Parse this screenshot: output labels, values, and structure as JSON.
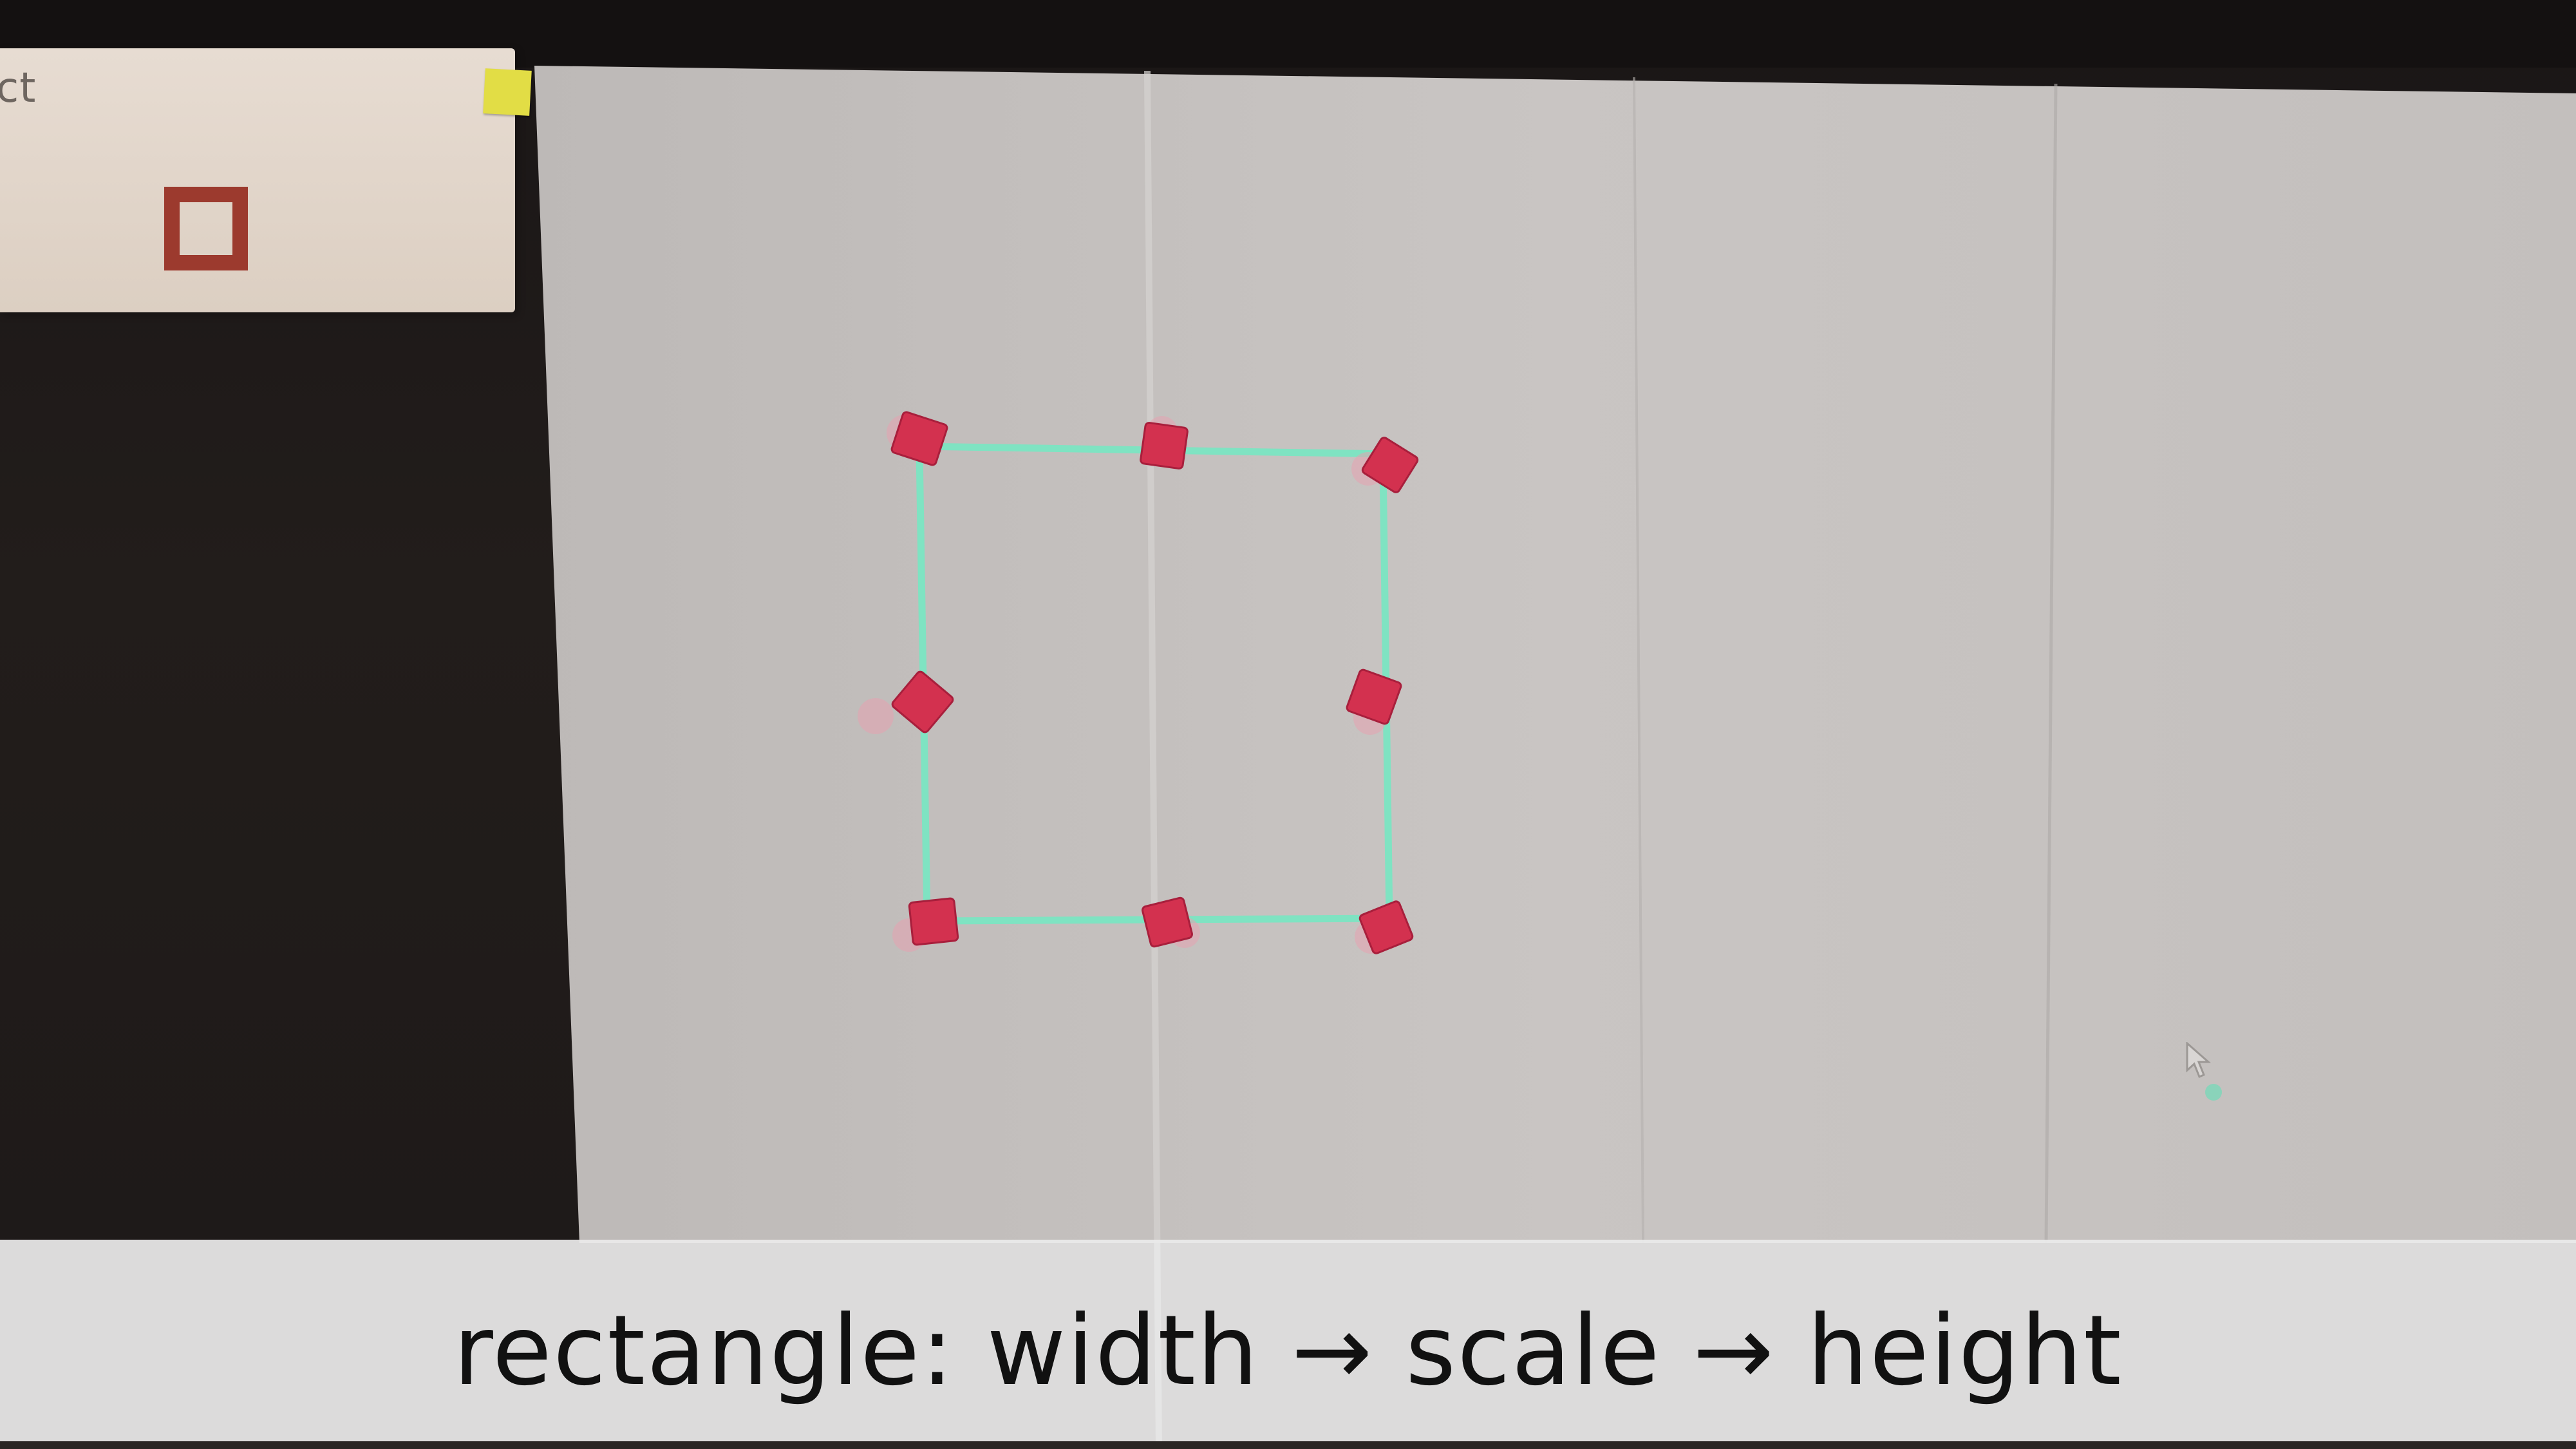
{
  "scene": {
    "side_card": {
      "label": "ct",
      "glyph": "square-outline-icon"
    },
    "sticky_note": {
      "icon": "sticky-note",
      "color": "#e2dd45"
    },
    "paper_color": "#c8c4c2",
    "tracked_shape": {
      "type": "rectangle",
      "line_color": "#7fe3c2",
      "marker_color": "#d3314f",
      "marker_count": 8
    },
    "cursor": {
      "icon": "mouse-pointer-icon",
      "dot_color": "#7fd6b8"
    }
  },
  "caption": {
    "text": "rectangle: width → scale → height"
  }
}
